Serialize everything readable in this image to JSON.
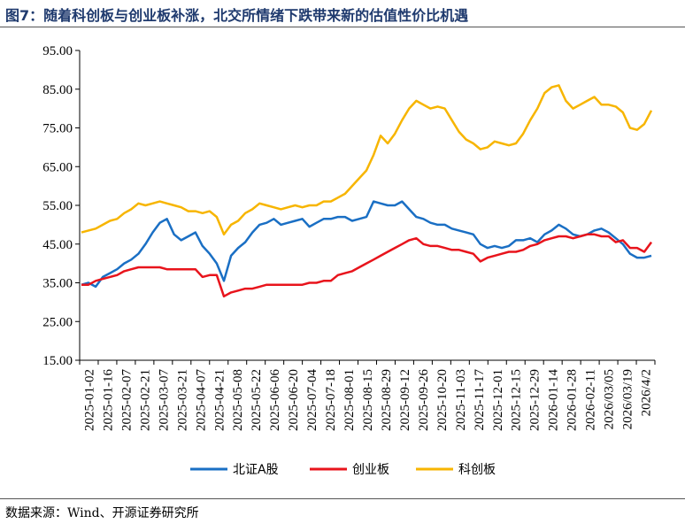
{
  "title": "图7：随着科创板与创业板补涨，北交所情绪下跌带来新的估值性价比机遇",
  "source": "数据来源：Wind、开源证券研究所",
  "colors": {
    "bz": "#1a6fc4",
    "cyb": "#e8141c",
    "kcb": "#f7b500",
    "axis": "#000000",
    "title": "#1f3a6e"
  },
  "chart_data": {
    "type": "line",
    "title": "",
    "xlabel": "",
    "ylabel": "",
    "ylim": [
      15,
      95
    ],
    "y_ticks": [
      "15.00",
      "25.00",
      "35.00",
      "45.00",
      "55.00",
      "65.00",
      "75.00",
      "85.00",
      "95.00"
    ],
    "x_ticks": [
      "2025-01-02",
      "2025-01-16",
      "2025-02-07",
      "2025-02-21",
      "2025-03-07",
      "2025-03-21",
      "2025-04-07",
      "2025-04-21",
      "2025-05-08",
      "2025-05-22",
      "2025-06-06",
      "2025-06-20",
      "2025-07-04",
      "2025-07-18",
      "2025-08-01",
      "2025-08-15",
      "2025-08-29",
      "2025-09-12",
      "2025-09-26",
      "2025-10-20",
      "2025-11-03",
      "2025-11-17",
      "2025-12-01",
      "2025-12-15",
      "2025-12-29",
      "2026-01-14",
      "2026-01-28",
      "2026-02-11",
      "2026/03/05",
      "2026/03/19",
      "2026/4/2"
    ],
    "grid": false,
    "legend_position": "bottom",
    "series": [
      {
        "name": "北证A股",
        "color": "#1a6fc4",
        "values": [
          34.5,
          35,
          34,
          36.5,
          37.5,
          38.5,
          40,
          41,
          42.5,
          45,
          48,
          50.5,
          51.5,
          47.5,
          46,
          47,
          48,
          44.5,
          42.5,
          40,
          35.5,
          42,
          44,
          45.5,
          48,
          50,
          50.5,
          51.5,
          50,
          50.5,
          51,
          51.5,
          49.5,
          50.5,
          51.5,
          51.5,
          52,
          52,
          51,
          51.5,
          52,
          56,
          55.5,
          55,
          55,
          56,
          54,
          52,
          51.5,
          50.5,
          50,
          50,
          49,
          48.5,
          48,
          47.5,
          45,
          44,
          44.5,
          44,
          44.5,
          46,
          46,
          46.5,
          45.5,
          47.5,
          48.5,
          50,
          49,
          47.5,
          47,
          47.5,
          48.5,
          49,
          48,
          46.5,
          45,
          42.5,
          41.5,
          41.5,
          42
        ]
      },
      {
        "name": "创业板",
        "color": "#e8141c",
        "values": [
          34.5,
          34.5,
          35.5,
          36,
          36.5,
          37,
          38,
          38.5,
          39,
          39,
          39,
          39,
          38.5,
          38.5,
          38.5,
          38.5,
          38.5,
          36.5,
          37,
          37,
          31.5,
          32.5,
          33,
          33.5,
          33.5,
          34,
          34.5,
          34.5,
          34.5,
          34.5,
          34.5,
          34.5,
          35,
          35,
          35.5,
          35.5,
          37,
          37.5,
          38,
          39,
          40,
          41,
          42,
          43,
          44,
          45,
          46,
          46.5,
          45,
          44.5,
          44.5,
          44,
          43.5,
          43.5,
          43,
          42.5,
          40.5,
          41.5,
          42,
          42.5,
          43,
          43,
          43.5,
          44.5,
          45,
          46,
          46.5,
          47,
          47,
          46.5,
          47,
          47.5,
          47.5,
          47,
          47,
          45.5,
          46,
          44,
          44,
          43,
          45.5
        ]
      },
      {
        "name": "科创板",
        "color": "#f7b500",
        "values": [
          48,
          48.5,
          49,
          50,
          51,
          51.5,
          53,
          54,
          55.5,
          55,
          55.5,
          56,
          55.5,
          55,
          54.5,
          53.5,
          53.5,
          53,
          53.5,
          52,
          47.5,
          50,
          51,
          53,
          54,
          55.5,
          55,
          54.5,
          54,
          54.5,
          55,
          54.5,
          55,
          55,
          56,
          56,
          57,
          58,
          60,
          62,
          64,
          68,
          73,
          71,
          73.5,
          77,
          80,
          82,
          81,
          80,
          80.5,
          80,
          77,
          74,
          72,
          71,
          69.5,
          70,
          71.5,
          71,
          70.5,
          71,
          73.5,
          77,
          80,
          84,
          85.5,
          86,
          82,
          80,
          81,
          82,
          83,
          81,
          81,
          80.5,
          79,
          75,
          74.5,
          76,
          79.5
        ]
      }
    ]
  }
}
